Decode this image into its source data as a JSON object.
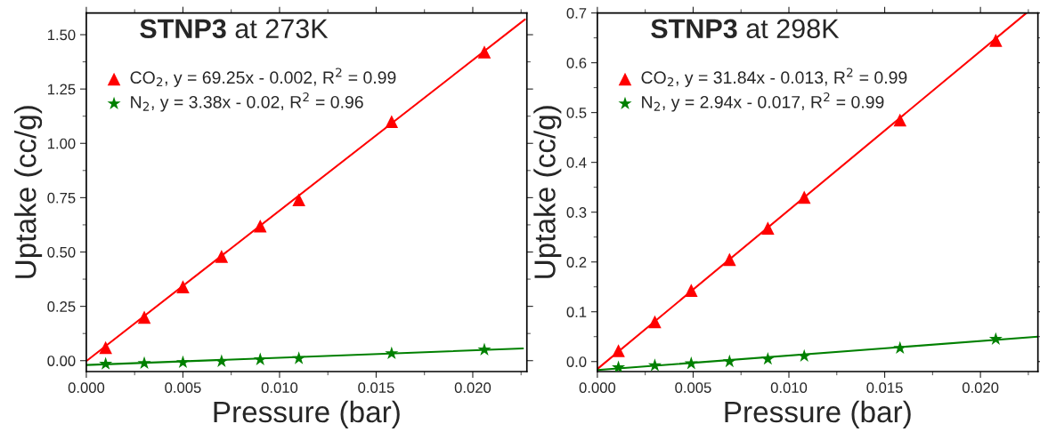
{
  "chart_data": [
    {
      "type": "scatter",
      "title": "STNP3 at 273K",
      "xlabel": "Pressure (bar)",
      "ylabel": "Uptake (cc/g)",
      "xlim": [
        0,
        0.0228
      ],
      "ylim": [
        -0.05,
        1.6
      ],
      "xticks": [
        {
          "value": 0,
          "label": "0.000"
        },
        {
          "value": 0.005,
          "label": "0.005"
        },
        {
          "value": 0.01,
          "label": "0.010"
        },
        {
          "value": 0.015,
          "label": "0.015"
        },
        {
          "value": 0.02,
          "label": "0.020"
        }
      ],
      "yticks": [
        {
          "value": 0,
          "label": "0.00"
        },
        {
          "value": 0.25,
          "label": "0.25"
        },
        {
          "value": 0.5,
          "label": "0.50"
        },
        {
          "value": 0.75,
          "label": "0.75"
        },
        {
          "value": 1.0,
          "label": "1.00"
        },
        {
          "value": 1.25,
          "label": "1.25"
        },
        {
          "value": 1.5,
          "label": "1.50"
        }
      ],
      "legend": "top left",
      "grid": false,
      "series": [
        {
          "name": "CO$_{2}$, y = 69.25x - 0.002, R$^{2}$ = 0.99",
          "color": "#ff0000",
          "marker": "triangle",
          "x": [
            0.001,
            0.003,
            0.005,
            0.007,
            0.009,
            0.011,
            0.0158,
            0.0206
          ],
          "values": [
            0.06,
            0.2,
            0.34,
            0.48,
            0.62,
            0.74,
            1.1,
            1.42
          ]
        },
        {
          "name": "N$_{2}$, y = 3.38x - 0.02, R$^{2}$ = 0.96",
          "color": "#008000",
          "marker": "star",
          "x": [
            0.001,
            0.003,
            0.005,
            0.007,
            0.009,
            0.011,
            0.0158,
            0.0206
          ],
          "values": [
            -0.015,
            -0.012,
            -0.008,
            -0.003,
            0.005,
            0.01,
            0.033,
            0.05
          ]
        },
        {
          "type": "line",
          "color": "#ff0000",
          "x": [
            0,
            0.0227
          ],
          "values": [
            -0.002,
            1.57
          ]
        },
        {
          "type": "line",
          "color": "#008000",
          "x": [
            0,
            0.0226
          ],
          "values": [
            -0.02,
            0.056
          ]
        }
      ]
    },
    {
      "type": "scatter",
      "title": "STNP3 at 298K",
      "xlabel": "Pressure (bar)",
      "ylabel": "Uptake (cc/g)",
      "xlim": [
        0,
        0.023
      ],
      "ylim": [
        -0.02,
        0.7
      ],
      "xticks": [
        {
          "value": 0,
          "label": "0.000"
        },
        {
          "value": 0.005,
          "label": "0.005"
        },
        {
          "value": 0.01,
          "label": "0.010"
        },
        {
          "value": 0.015,
          "label": "0.015"
        },
        {
          "value": 0.02,
          "label": "0.020"
        }
      ],
      "yticks": [
        {
          "value": 0,
          "label": "0.0"
        },
        0.1,
        0.2,
        0.3,
        0.4,
        0.5,
        0.6,
        0.7
      ],
      "legend": "top left",
      "grid": false,
      "series": [
        {
          "name": "CO$_{2}$, y = 31.84x - 0.013, R$^{2}$ = 0.99",
          "color": "#ff0000",
          "marker": "triangle",
          "x": [
            0.0011,
            0.003,
            0.0049,
            0.0069,
            0.0089,
            0.0108,
            0.0158,
            0.0208
          ],
          "values": [
            0.022,
            0.08,
            0.143,
            0.205,
            0.268,
            0.33,
            0.485,
            0.645
          ]
        },
        {
          "name": "N$_{2}$, y = 2.94x - 0.017, R$^{2}$ = 0.99",
          "color": "#008000",
          "marker": "star",
          "x": [
            0.0011,
            0.003,
            0.0049,
            0.0069,
            0.0089,
            0.0108,
            0.0158,
            0.0208
          ],
          "values": [
            -0.012,
            -0.008,
            -0.004,
            0.0,
            0.005,
            0.011,
            0.027,
            0.045
          ]
        },
        {
          "type": "line",
          "color": "#ff0000",
          "x": [
            0,
            0.0224
          ],
          "values": [
            -0.015,
            0.7
          ]
        },
        {
          "type": "line",
          "color": "#008000",
          "x": [
            0,
            0.023
          ],
          "values": [
            -0.017,
            0.05
          ]
        }
      ]
    }
  ]
}
